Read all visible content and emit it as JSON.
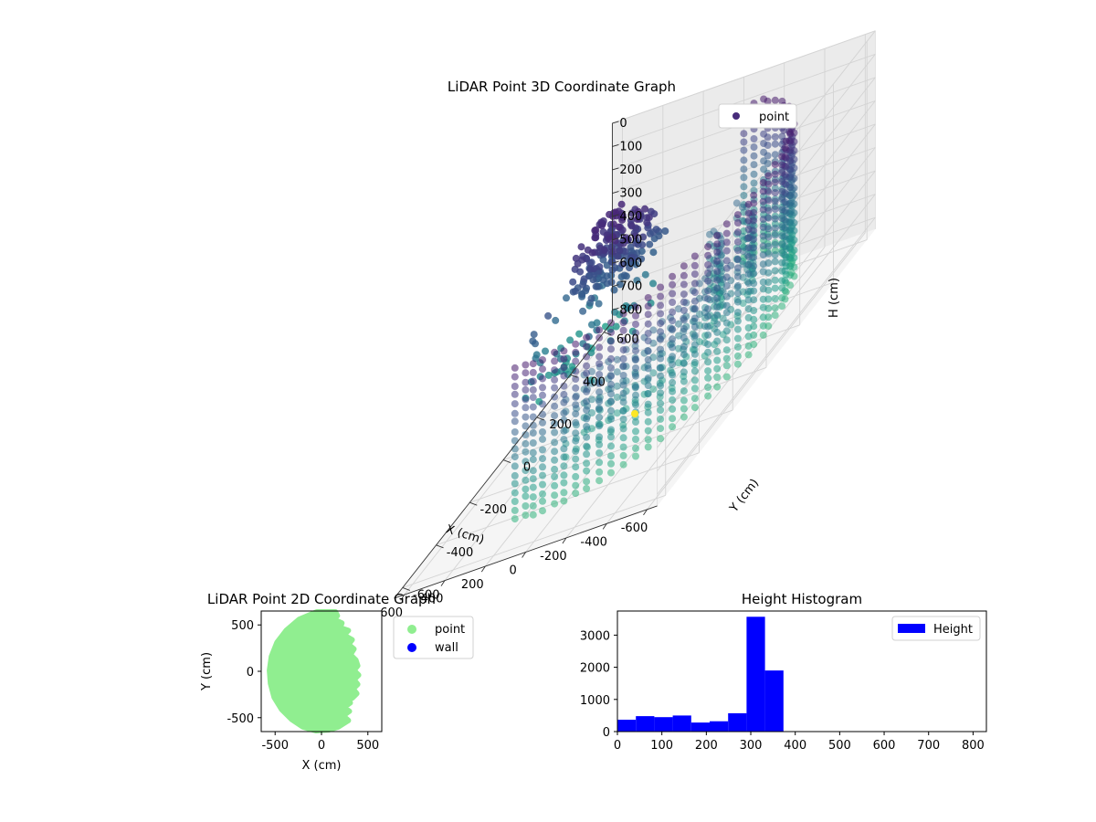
{
  "chart_data": [
    {
      "type": "scatter3d",
      "title": "LiDAR Point 3D Coordinate Graph",
      "xlabel": "X (cm)",
      "ylabel": "Y (cm)",
      "zlabel": "H (cm)",
      "xlim": [
        -650,
        650
      ],
      "ylim": [
        -650,
        650
      ],
      "zlim": [
        0,
        850
      ],
      "z_inverted": true,
      "x_ticks": [
        "-600",
        "-400",
        "-200",
        "0",
        "200",
        "400",
        "600"
      ],
      "y_ticks": [
        "-600",
        "-400",
        "-200",
        "0",
        "200",
        "400",
        "600"
      ],
      "z_ticks": [
        "0",
        "100",
        "200",
        "300",
        "400",
        "500",
        "600",
        "700",
        "800"
      ],
      "grid": true,
      "colormap": "viridis",
      "legend": {
        "placement": "top-right",
        "entries": [
          {
            "name": "point",
            "color": "#472c7a"
          }
        ]
      },
      "sensor_point": {
        "x": 0,
        "y": 0,
        "h": 0,
        "color": "#fde725"
      }
    },
    {
      "type": "scatter",
      "title": "LiDAR Point 2D Coordinate Graph",
      "xlabel": "X (cm)",
      "ylabel": "Y (cm)",
      "xlim": [
        -650,
        650
      ],
      "ylim": [
        -650,
        650
      ],
      "x_ticks": [
        "-500",
        "0",
        "500"
      ],
      "y_ticks": [
        "-500",
        "0",
        "500"
      ],
      "legend": {
        "placement": "outside-right",
        "entries": [
          {
            "name": "point",
            "color": "#90ee90"
          },
          {
            "name": "wall",
            "color": "#0000ff"
          }
        ]
      },
      "point_region_outline": [
        [
          -50,
          640
        ],
        [
          150,
          640
        ],
        [
          170,
          600
        ],
        [
          130,
          560
        ],
        [
          220,
          520
        ],
        [
          200,
          470
        ],
        [
          290,
          440
        ],
        [
          240,
          390
        ],
        [
          330,
          340
        ],
        [
          290,
          290
        ],
        [
          350,
          240
        ],
        [
          310,
          180
        ],
        [
          370,
          120
        ],
        [
          390,
          60
        ],
        [
          350,
          10
        ],
        [
          400,
          -40
        ],
        [
          350,
          -90
        ],
        [
          390,
          -140
        ],
        [
          340,
          -190
        ],
        [
          380,
          -240
        ],
        [
          330,
          -290
        ],
        [
          270,
          -300
        ],
        [
          310,
          -340
        ],
        [
          240,
          -390
        ],
        [
          300,
          -430
        ],
        [
          230,
          -480
        ],
        [
          290,
          -530
        ],
        [
          180,
          -600
        ],
        [
          80,
          -630
        ],
        [
          -60,
          -640
        ],
        [
          -200,
          -600
        ],
        [
          -320,
          -520
        ],
        [
          -430,
          -410
        ],
        [
          -510,
          -280
        ],
        [
          -550,
          -130
        ],
        [
          -560,
          10
        ],
        [
          -540,
          160
        ],
        [
          -480,
          310
        ],
        [
          -380,
          440
        ],
        [
          -240,
          560
        ]
      ]
    },
    {
      "type": "bar",
      "title": "Height Histogram",
      "xlim": [
        0,
        830
      ],
      "ylim": [
        0,
        3750
      ],
      "x_ticks": [
        "0",
        "100",
        "200",
        "300",
        "400",
        "500",
        "600",
        "700",
        "800"
      ],
      "y_ticks": [
        "0",
        "1000",
        "2000",
        "3000"
      ],
      "bar_color": "#0000ff",
      "bin_width": 41.5,
      "bin_edges_start": 0,
      "values": [
        370,
        480,
        450,
        500,
        280,
        320,
        570,
        3570,
        1900,
        0,
        0,
        0,
        0,
        0,
        0,
        0,
        0,
        0,
        0,
        0
      ],
      "legend": {
        "placement": "top-right",
        "entries": [
          {
            "name": "Height",
            "color": "#0000ff"
          }
        ]
      }
    }
  ]
}
